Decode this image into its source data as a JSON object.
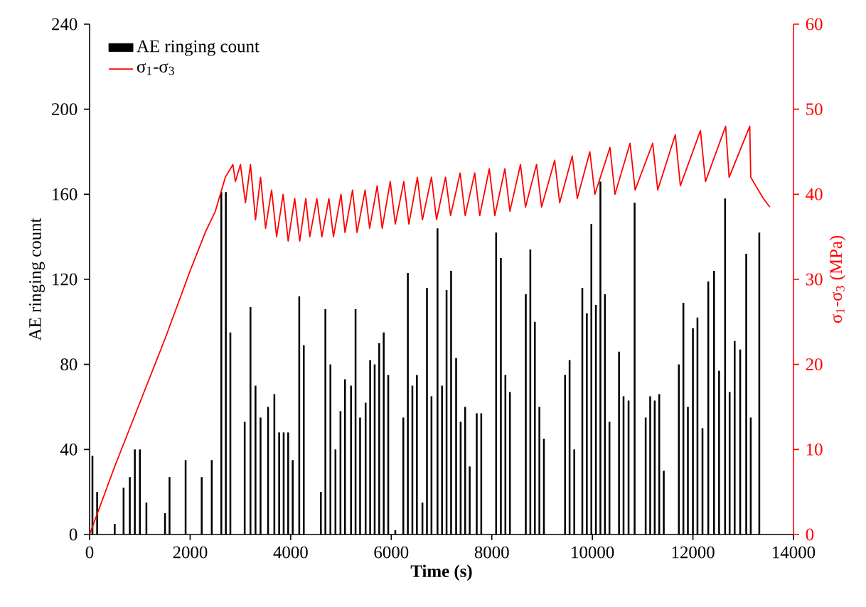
{
  "chart_data": {
    "type": "bar",
    "xlabel": "Time (s)",
    "ylabel": "AE ringing count",
    "y2label": "σ$_{1}$-σ$_{3}$ (MPa)",
    "xlim": [
      0,
      14000
    ],
    "xticks": [
      0,
      2000,
      4000,
      6000,
      8000,
      10000,
      12000,
      14000
    ],
    "ylim": [
      0,
      240
    ],
    "yticks": [
      0,
      40,
      80,
      120,
      160,
      200,
      240
    ],
    "y2lim": [
      0,
      60
    ],
    "y2ticks": [
      0,
      10,
      20,
      30,
      40,
      50,
      60
    ],
    "legend": "top left",
    "series": [
      {
        "name": "AE ringing count",
        "type": "bar",
        "color": "#000000",
        "x": [
          57,
          150,
          500,
          676,
          800,
          900,
          1000,
          1130,
          1500,
          1590,
          1910,
          2230,
          2430,
          2620,
          2710,
          2800,
          3085,
          3200,
          3300,
          3400,
          3550,
          3675,
          3770,
          3860,
          3950,
          4040,
          4170,
          4260,
          4600,
          4690,
          4790,
          4890,
          4990,
          5080,
          5200,
          5290,
          5380,
          5490,
          5580,
          5670,
          5760,
          5850,
          5940,
          6080,
          6240,
          6330,
          6420,
          6510,
          6620,
          6710,
          6800,
          6920,
          7010,
          7100,
          7190,
          7290,
          7380,
          7470,
          7560,
          7700,
          7790,
          8086,
          8180,
          8270,
          8360,
          8676,
          8766,
          8856,
          8946,
          9036,
          9457,
          9547,
          9640,
          9800,
          9890,
          9980,
          10070,
          10160,
          10250,
          10340,
          10530,
          10620,
          10720,
          10840,
          11060,
          11150,
          11240,
          11330,
          11420,
          11720,
          11810,
          11900,
          12000,
          12090,
          12190,
          12305,
          12420,
          12520,
          12640,
          12730,
          12830,
          12940,
          13060,
          13150,
          13320
        ],
        "values": [
          37,
          20,
          5,
          22,
          27,
          40,
          40,
          15,
          10,
          27,
          35,
          27,
          35,
          161,
          161,
          95,
          53,
          107,
          70,
          55,
          60,
          66,
          48,
          48,
          48,
          35,
          112,
          89,
          20,
          106,
          80,
          40,
          58,
          73,
          70,
          106,
          55,
          62,
          82,
          80,
          90,
          95,
          75,
          2,
          55,
          123,
          70,
          75,
          15,
          116,
          65,
          144,
          70,
          115,
          124,
          83,
          53,
          60,
          32,
          57,
          57,
          142,
          130,
          75,
          67,
          113,
          134,
          100,
          60,
          45,
          75,
          82,
          40,
          116,
          104,
          146,
          108,
          166,
          113,
          53,
          86,
          65,
          63,
          156,
          55,
          65,
          63,
          66,
          30,
          80,
          109,
          60,
          97,
          102,
          50,
          119,
          124,
          77,
          158,
          67,
          91,
          87,
          132,
          55,
          142
        ]
      },
      {
        "name": "σ$_{1}$-σ$_{3}$",
        "type": "line",
        "axis": "y2",
        "color": "#ff0000",
        "x": [
          0,
          500,
          1000,
          1500,
          2000,
          2300,
          2500,
          2700,
          2850,
          2900,
          3000,
          3100,
          3200,
          3300,
          3400,
          3500,
          3620,
          3720,
          3850,
          3950,
          4080,
          4180,
          4300,
          4380,
          4520,
          4620,
          4760,
          4850,
          5000,
          5080,
          5230,
          5320,
          5480,
          5570,
          5720,
          5820,
          5980,
          6080,
          6250,
          6350,
          6520,
          6620,
          6800,
          6900,
          7080,
          7180,
          7370,
          7470,
          7660,
          7760,
          7950,
          8060,
          8260,
          8360,
          8570,
          8670,
          8890,
          8990,
          9250,
          9350,
          9600,
          9700,
          9950,
          10050,
          10350,
          10450,
          10750,
          10850,
          11200,
          11300,
          11650,
          11750,
          12150,
          12250,
          12650,
          12720,
          13130,
          13150,
          13250,
          13400,
          13530
        ],
        "values": [
          0,
          8,
          15.5,
          23,
          31,
          35.5,
          38,
          42,
          43.5,
          41.5,
          43.5,
          39,
          43.5,
          37,
          42,
          36,
          40.5,
          35,
          40,
          34.5,
          39.5,
          34.5,
          39.5,
          35,
          39.5,
          35,
          39.5,
          35,
          40,
          35.5,
          40.5,
          35.5,
          40.5,
          36,
          41,
          36,
          41.5,
          36.5,
          41.5,
          36.5,
          42,
          37,
          42,
          37,
          42,
          37.5,
          42.5,
          37.5,
          42.5,
          37.5,
          43,
          37.5,
          43,
          38,
          43.5,
          38.5,
          43.5,
          38.5,
          44,
          39,
          44.5,
          39.5,
          45,
          40,
          45.5,
          40,
          46,
          40.5,
          46,
          40.5,
          47,
          41,
          47.5,
          41.5,
          48,
          42,
          48,
          42,
          41,
          39.5,
          38.5
        ]
      }
    ]
  }
}
